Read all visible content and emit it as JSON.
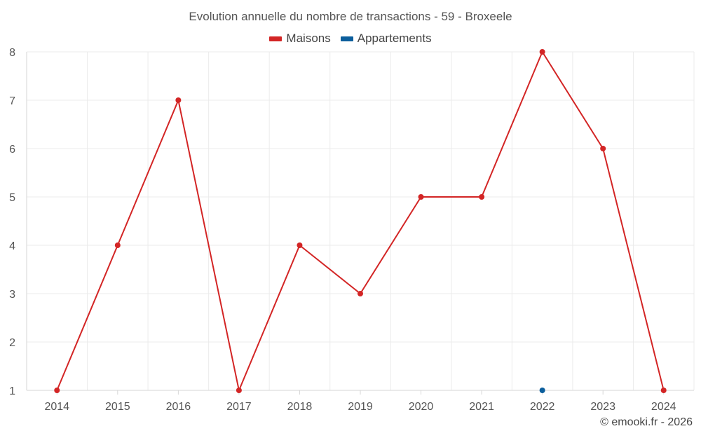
{
  "chart_data": {
    "type": "line",
    "title": "Evolution annuelle du nombre de transactions - 59 - Broxeele",
    "categories": [
      "2014",
      "2015",
      "2016",
      "2017",
      "2018",
      "2019",
      "2020",
      "2021",
      "2022",
      "2023",
      "2024"
    ],
    "series": [
      {
        "name": "Maisons",
        "color": "#d32525",
        "values": [
          1,
          4,
          7,
          1,
          4,
          3,
          5,
          5,
          8,
          6,
          1
        ]
      },
      {
        "name": "Appartements",
        "color": "#0b5e9c",
        "values": [
          null,
          null,
          null,
          null,
          null,
          null,
          null,
          null,
          1,
          null,
          null
        ]
      }
    ],
    "ylim": [
      1,
      8
    ],
    "yticks": [
      1,
      2,
      3,
      4,
      5,
      6,
      7,
      8
    ],
    "grid": true,
    "legend_position": "top-center",
    "xlabel": "",
    "ylabel": ""
  },
  "credit": "© emooki.fr - 2026"
}
